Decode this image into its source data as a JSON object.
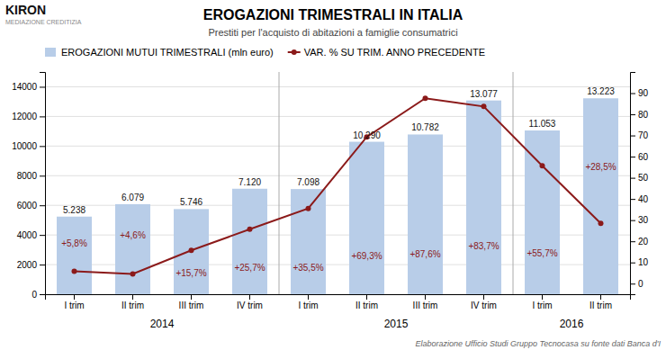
{
  "chart_data": {
    "type": "bar",
    "title": "EROGAZIONI TRIMESTRALI IN ITALIA",
    "subtitle": "Prestiti per l'acquisto di abitazioni a famiglie consumatrici",
    "footnote": "Elaborazione Ufficio Studi Gruppo Tecnocasa su fonte dati Banca d'I",
    "annotations": [
      "KIRON",
      "MEDIAZIONE CREDITIZIA"
    ],
    "categories": [
      "I trim",
      "II trim",
      "III trim",
      "IV trim",
      "I trim",
      "II trim",
      "III trim",
      "IV trim",
      "I trim",
      "II trim"
    ],
    "groups": [
      {
        "label": "2014",
        "start": 0,
        "end": 3
      },
      {
        "label": "2015",
        "start": 4,
        "end": 7
      },
      {
        "label": "2016",
        "start": 8,
        "end": 9
      }
    ],
    "series": [
      {
        "name": "EROGAZIONI MUTUI TRIMESTRALI (mln euro)",
        "type": "bar",
        "color": "#b8cde8",
        "values": [
          5238,
          6079,
          5746,
          7120,
          7098,
          10290,
          10782,
          13077,
          11053,
          13223
        ],
        "value_labels": [
          "5.238",
          "6.079",
          "5.746",
          "7.120",
          "7.098",
          "10.290",
          "10.782",
          "13.077",
          "11.053",
          "13.223"
        ]
      },
      {
        "name": "VAR. % SU TRIM. ANNO PRECEDENTE",
        "type": "line",
        "color": "#8b1a1a",
        "axis": "y2",
        "marker": "circle",
        "values": [
          5.8,
          4.6,
          15.7,
          25.7,
          35.5,
          69.3,
          87.6,
          83.7,
          55.7,
          28.5
        ],
        "value_labels": [
          "+5,8%",
          "+4,6%",
          "+15,7%",
          "+25,7%",
          "+35,5%",
          "+69,3%",
          "+87,6%",
          "+83,7%",
          "+55,7%",
          "+28,5%"
        ]
      }
    ],
    "ylim": [
      0,
      15000
    ],
    "yticks": [
      0,
      2000,
      4000,
      6000,
      8000,
      10000,
      12000,
      14000
    ],
    "y2lim": [
      -5,
      100
    ],
    "y2ticks": [
      0,
      10,
      20,
      30,
      40,
      50,
      60,
      70,
      80,
      90
    ],
    "grid": true,
    "legend": "upper left",
    "data_labels": true
  }
}
